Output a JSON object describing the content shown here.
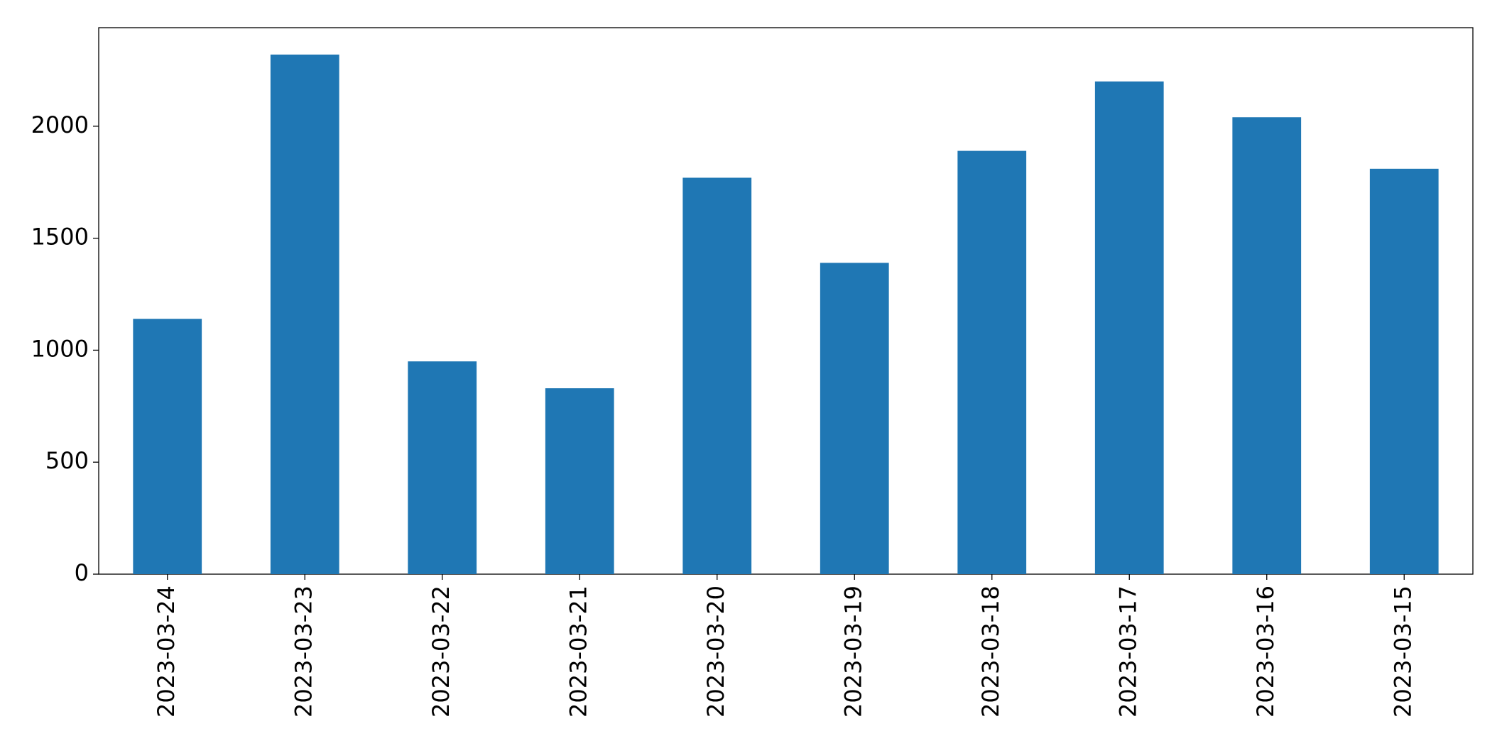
{
  "chart_data": {
    "type": "bar",
    "categories": [
      "2023-03-24",
      "2023-03-23",
      "2023-03-22",
      "2023-03-21",
      "2023-03-20",
      "2023-03-19",
      "2023-03-18",
      "2023-03-17",
      "2023-03-16",
      "2023-03-15"
    ],
    "values": [
      1140,
      2320,
      950,
      830,
      1770,
      1390,
      1890,
      2200,
      2040,
      1810
    ],
    "color": "#1f77b4",
    "ylim": [
      0,
      2440
    ],
    "yticks": [
      0,
      500,
      1000,
      1500,
      2000
    ],
    "grid": false
  }
}
